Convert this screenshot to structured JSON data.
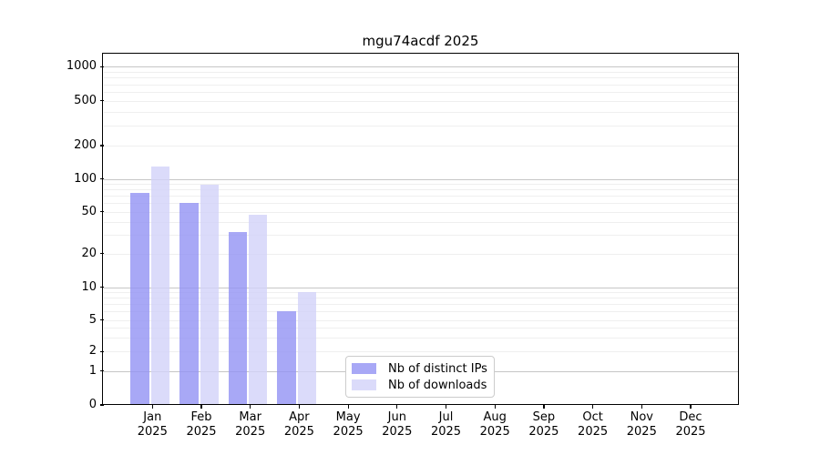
{
  "chart_data": {
    "type": "bar",
    "title": "mgu74acdf 2025",
    "x_month_labels": [
      "Jan",
      "Feb",
      "Mar",
      "Apr",
      "May",
      "Jun",
      "Jul",
      "Aug",
      "Sep",
      "Oct",
      "Nov",
      "Dec"
    ],
    "x_year_label": "2025",
    "series": [
      {
        "name": "Nb of distinct IPs",
        "color": "rgba(146,146,244,0.8)",
        "values": [
          75,
          60,
          32,
          6,
          0,
          0,
          0,
          0,
          0,
          0,
          0,
          0
        ]
      },
      {
        "name": "Nb of downloads",
        "color": "rgba(210,210,249,0.8)",
        "values": [
          130,
          88,
          47,
          9,
          0,
          0,
          0,
          0,
          0,
          0,
          0,
          0
        ]
      }
    ],
    "yticks": [
      0,
      1,
      2,
      5,
      10,
      20,
      50,
      100,
      200,
      500,
      1000
    ],
    "yscale": "log above 1 with compressed 0-1 linear segment (symlog-like)",
    "ylim": [
      0,
      1300
    ],
    "grid": {
      "major_values": [
        1,
        10,
        100,
        1000
      ],
      "minor_values": [
        2,
        3,
        4,
        5,
        6,
        7,
        8,
        9,
        20,
        30,
        40,
        50,
        60,
        70,
        80,
        90,
        200,
        300,
        400,
        500,
        600,
        700,
        800,
        900
      ],
      "major_color": "#c6c6c6",
      "minor_color": "#efefef"
    },
    "legend_position": "lower center, inside plot",
    "axis_color": "#000000",
    "background_color": "#ffffff"
  },
  "legend": {
    "items": [
      {
        "label": "Nb of distinct IPs"
      },
      {
        "label": "Nb of downloads"
      }
    ]
  }
}
